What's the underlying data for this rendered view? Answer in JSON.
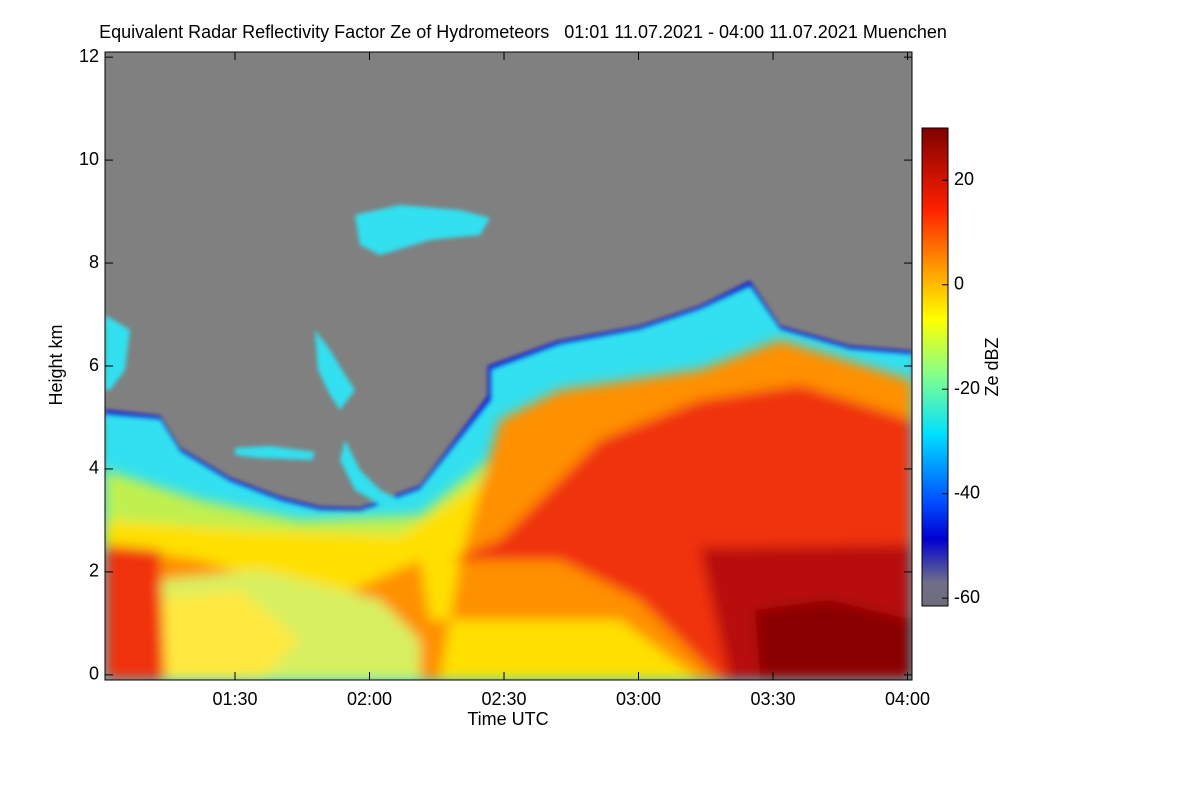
{
  "chart_data": {
    "type": "heatmap",
    "title": "Equivalent Radar Reflectivity Factor Ze of Hydrometeors   01:01 11.07.2021 - 04:00 11.07.2021 Muenchen",
    "x_label": "Time UTC",
    "y_label": "Height km",
    "xlim": [
      61,
      241
    ],
    "xticks": [
      {
        "value": 90,
        "label": "01:30"
      },
      {
        "value": 120,
        "label": "02:00"
      },
      {
        "value": 150,
        "label": "02:30"
      },
      {
        "value": 180,
        "label": "03:00"
      },
      {
        "value": 210,
        "label": "03:30"
      },
      {
        "value": 240,
        "label": "04:00"
      }
    ],
    "ylim": [
      -0.1,
      12.1
    ],
    "yticks": [
      0,
      2,
      4,
      6,
      8,
      10,
      12
    ],
    "colorbar": {
      "label": "Ze dBZ",
      "lim": [
        -61.5,
        30
      ],
      "ticks": [
        -60,
        -40,
        -20,
        0,
        20
      ]
    }
  }
}
